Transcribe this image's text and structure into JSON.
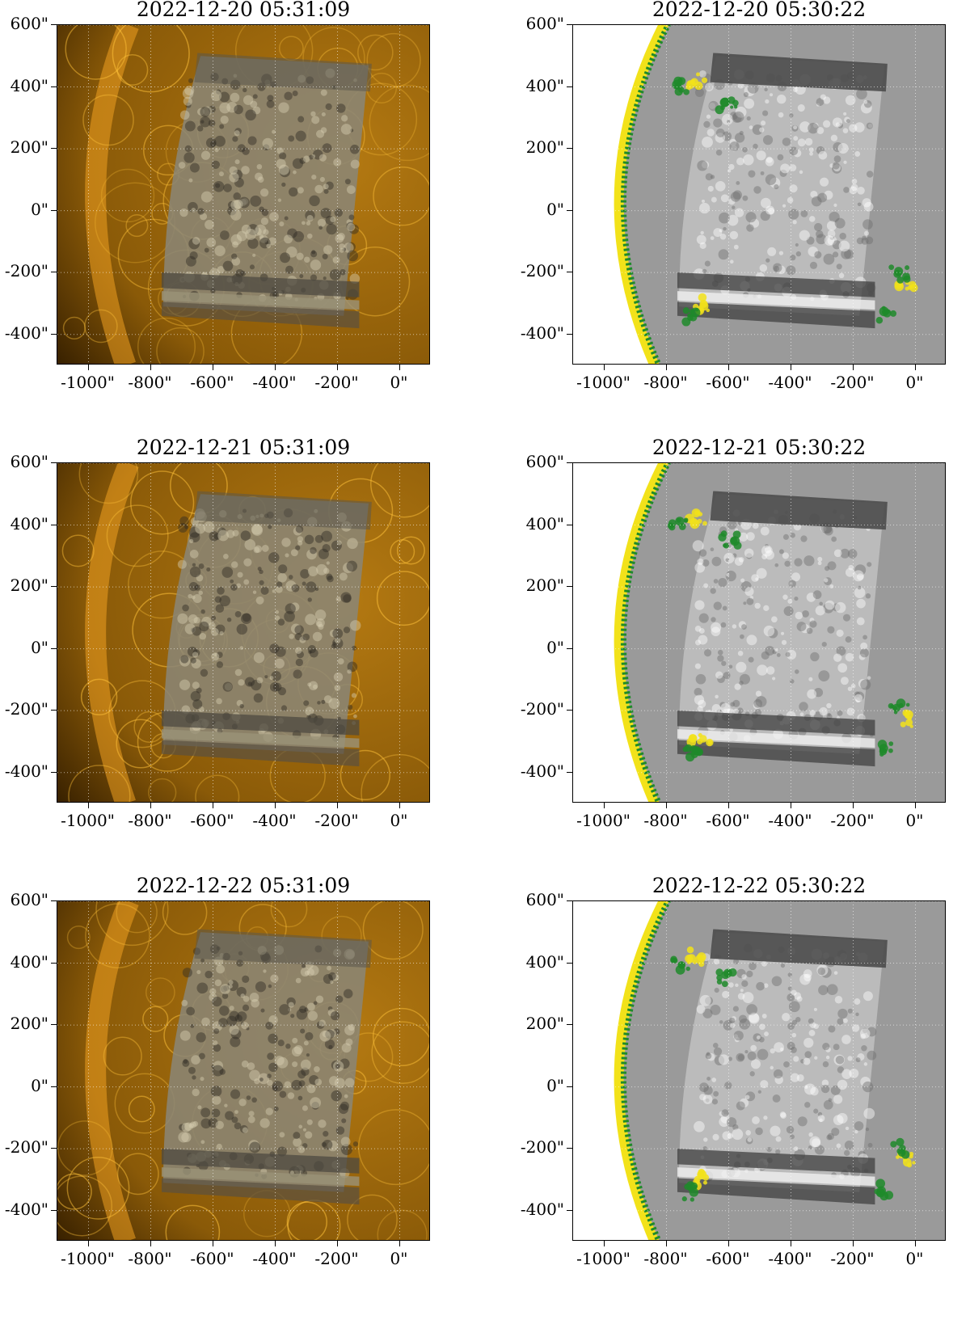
{
  "panels": [
    {
      "title": "2022-12-20 05:31:09",
      "kind": "aia"
    },
    {
      "title": "2022-12-20 05:30:22",
      "kind": "hmi"
    },
    {
      "title": "2022-12-21 05:31:09",
      "kind": "aia"
    },
    {
      "title": "2022-12-21 05:30:22",
      "kind": "hmi"
    },
    {
      "title": "2022-12-22 05:31:09",
      "kind": "aia"
    },
    {
      "title": "2022-12-22 05:30:22",
      "kind": "hmi"
    }
  ],
  "axes": {
    "x_ticks": [
      "-1000\"",
      "-800\"",
      "-600\"",
      "-400\"",
      "-200\"",
      "0\""
    ],
    "y_ticks": [
      "600\"",
      "400\"",
      "200\"",
      "0\"",
      "-200\"",
      "-400\""
    ],
    "x_range_arcsec": [
      -1100,
      100
    ],
    "y_range_arcsec": [
      -500,
      600
    ]
  },
  "colors": {
    "aia_background": "#7a4a00",
    "aia_glow": "#f0a020",
    "overlay_gray": "#8c8c8c",
    "hmi_background": "#9a9a9a",
    "hmi_positive": "#f2e21a",
    "hmi_negative": "#1f8a2a"
  }
}
